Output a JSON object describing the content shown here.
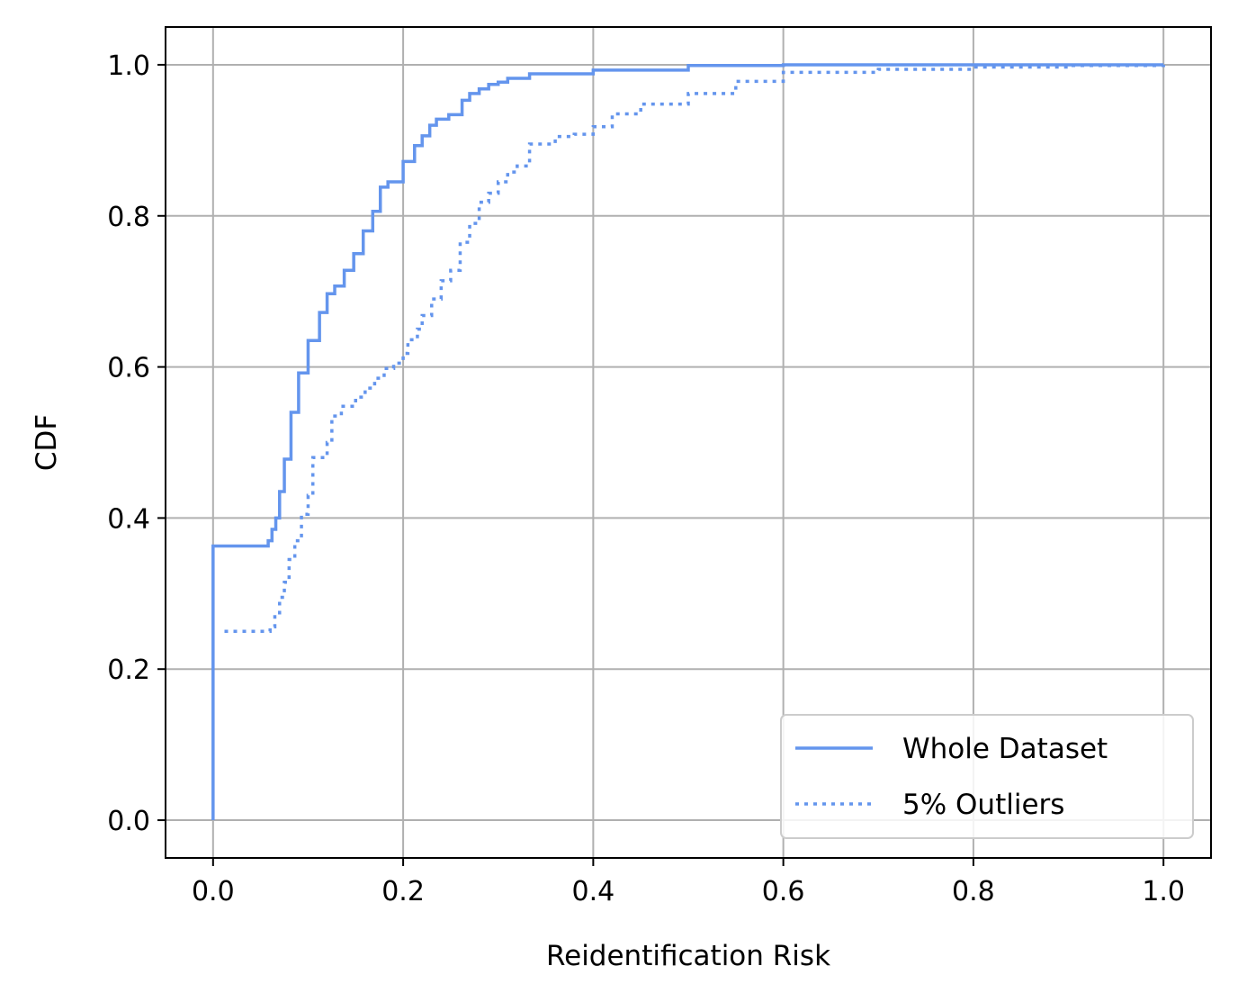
{
  "chart_data": {
    "type": "line",
    "title": "",
    "xlabel": "Reidentification Risk",
    "ylabel": "CDF",
    "xlim": [
      -0.05,
      1.05
    ],
    "ylim": [
      -0.05,
      1.05
    ],
    "xticks": [
      0.0,
      0.2,
      0.4,
      0.6,
      0.8,
      1.0
    ],
    "xtick_labels": [
      "0.0",
      "0.2",
      "0.4",
      "0.6",
      "0.8",
      "1.0"
    ],
    "yticks": [
      0.0,
      0.2,
      0.4,
      0.6,
      0.8,
      1.0
    ],
    "ytick_labels": [
      "0.0",
      "0.2",
      "0.4",
      "0.6",
      "0.8",
      "1.0"
    ],
    "grid": true,
    "legend_position": "bottom-right",
    "series": [
      {
        "name": "Whole Dataset",
        "color": "#6495ED",
        "style": "solid",
        "x": [
          0.0,
          0.0,
          0.055,
          0.058,
          0.062,
          0.066,
          0.07,
          0.075,
          0.082,
          0.09,
          0.1,
          0.112,
          0.12,
          0.128,
          0.138,
          0.148,
          0.158,
          0.168,
          0.176,
          0.184,
          0.2,
          0.212,
          0.22,
          0.228,
          0.235,
          0.248,
          0.262,
          0.27,
          0.28,
          0.29,
          0.3,
          0.31,
          0.333,
          0.4,
          0.5,
          0.6,
          1.0
        ],
        "y": [
          0.0,
          0.363,
          0.363,
          0.37,
          0.385,
          0.4,
          0.435,
          0.478,
          0.54,
          0.592,
          0.635,
          0.672,
          0.697,
          0.707,
          0.728,
          0.75,
          0.78,
          0.806,
          0.838,
          0.845,
          0.872,
          0.893,
          0.906,
          0.92,
          0.928,
          0.934,
          0.953,
          0.962,
          0.968,
          0.974,
          0.977,
          0.982,
          0.988,
          0.993,
          0.999,
          1.0,
          1.0
        ]
      },
      {
        "name": "5% Outliers",
        "color": "#6495ED",
        "style": "dotted",
        "x": [
          0.012,
          0.06,
          0.065,
          0.07,
          0.075,
          0.08,
          0.086,
          0.093,
          0.1,
          0.105,
          0.12,
          0.125,
          0.135,
          0.15,
          0.16,
          0.17,
          0.18,
          0.19,
          0.2,
          0.205,
          0.215,
          0.22,
          0.23,
          0.24,
          0.25,
          0.26,
          0.27,
          0.28,
          0.29,
          0.3,
          0.31,
          0.32,
          0.333,
          0.36,
          0.38,
          0.4,
          0.42,
          0.45,
          0.5,
          0.55,
          0.6,
          0.7,
          0.8,
          0.9,
          1.0
        ],
        "y": [
          0.25,
          0.256,
          0.272,
          0.295,
          0.315,
          0.345,
          0.37,
          0.405,
          0.43,
          0.48,
          0.5,
          0.535,
          0.548,
          0.56,
          0.572,
          0.585,
          0.598,
          0.605,
          0.618,
          0.636,
          0.65,
          0.668,
          0.69,
          0.714,
          0.728,
          0.765,
          0.79,
          0.818,
          0.83,
          0.845,
          0.858,
          0.866,
          0.895,
          0.905,
          0.908,
          0.918,
          0.935,
          0.948,
          0.962,
          0.978,
          0.99,
          0.994,
          0.997,
          0.999,
          1.0
        ]
      }
    ]
  }
}
